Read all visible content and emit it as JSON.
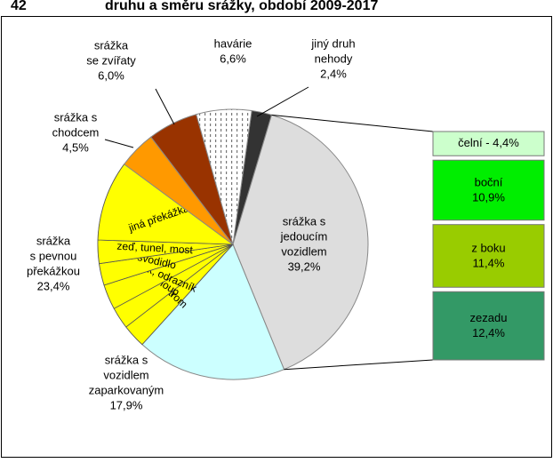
{
  "chart_data": {
    "type": "pie-of-bar",
    "number": "42",
    "title": "druhu a směru srážky, období 2009-2017",
    "start_angle": 8,
    "slices": [
      {
        "label": [
          "jiný druh",
          "nehody"
        ],
        "value": 2.4,
        "value_label": "2,4%",
        "color": "#333333"
      },
      {
        "label": [
          "srážka s",
          "jedoucím",
          "vozidlem"
        ],
        "value": 39.2,
        "value_label": "39,2%",
        "color": "#dddddd"
      },
      {
        "label": [
          "srážka s",
          "vozidlem",
          "zaparkovaným"
        ],
        "value": 17.9,
        "value_label": "17,9%",
        "color": "#ccffff"
      },
      {
        "label": [
          "srážka",
          "s pevnou",
          "překážkou"
        ],
        "value": 23.4,
        "value_label": "23,4%",
        "color": "#ffff00",
        "segments": [
          {
            "name": "strom",
            "value": 2.8
          },
          {
            "name": "sloup",
            "value": 2.6
          },
          {
            "name": "patník, odrazník",
            "value": 3.0
          },
          {
            "name": "svodidlo",
            "value": 2.6
          },
          {
            "name": "zeď, tunel, most",
            "value": 2.8
          },
          {
            "name": "jiná překážka",
            "value": 9.6
          }
        ]
      },
      {
        "label": [
          "srážka s",
          "chodcem"
        ],
        "value": 4.5,
        "value_label": "4,5%",
        "color": "#ff9900"
      },
      {
        "label": [
          "srážka",
          "se zvířaty"
        ],
        "value": 6.0,
        "value_label": "6,0%",
        "color": "#993300"
      },
      {
        "label": [
          "havárie"
        ],
        "value": 6.6,
        "value_label": "6,6%",
        "color": "#ffffff",
        "pattern": "dots"
      }
    ],
    "bar": {
      "of_slice": 1,
      "items": [
        {
          "name": "čelní - 4,4%",
          "value": 4.4,
          "color": "#ccffcc"
        },
        {
          "name": "boční",
          "value": 10.9,
          "value_label": "10,9%",
          "color": "#00ee00"
        },
        {
          "name": "z boku",
          "value": 11.4,
          "value_label": "11,4%",
          "color": "#99cc00"
        },
        {
          "name": "zezadu",
          "value": 12.4,
          "value_label": "12,4%",
          "color": "#339966"
        }
      ]
    }
  }
}
